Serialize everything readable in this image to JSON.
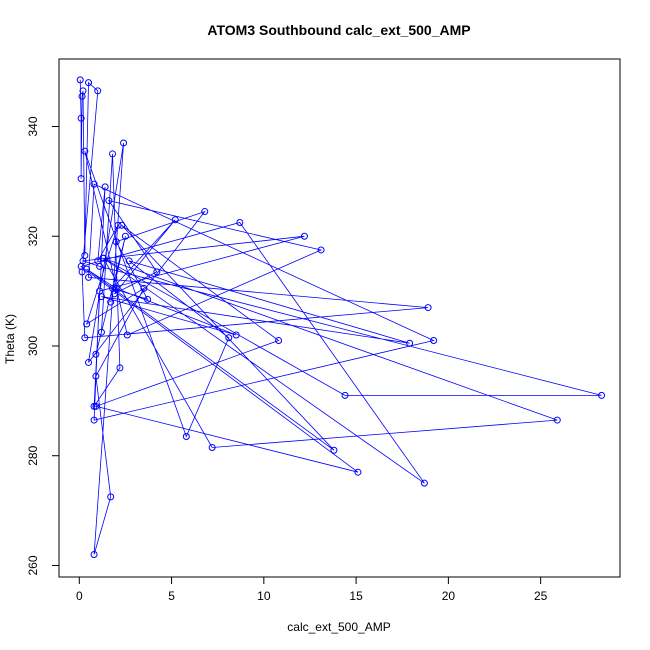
{
  "chart_data": {
    "type": "line",
    "title": "ATOM3 Southbound calc_ext_500_AMP",
    "xlabel": "calc_ext_500_AMP",
    "ylabel": "Theta (K)",
    "xlim": [
      -1.1,
      29.3
    ],
    "ylim": [
      257.9,
      352.3
    ],
    "x_ticks": [
      0,
      5,
      10,
      15,
      20,
      25
    ],
    "y_ticks": [
      260,
      280,
      300,
      320,
      340
    ],
    "x_tick_labels": [
      "0",
      "5",
      "10",
      "15",
      "20",
      "25"
    ],
    "y_tick_labels": [
      "260",
      "280",
      "300",
      "320",
      "340"
    ],
    "grid": false,
    "legend": "none",
    "marker": "open-circle",
    "line_color": "#0000ff",
    "series": [
      {
        "x": [
          0.05,
          0.1,
          0.1,
          0.15,
          0.2,
          0.3,
          0.5,
          1.0,
          0.15,
          0.3,
          18.9,
          0.5,
          0.8,
          19.2,
          0.8,
          1.1,
          12.2,
          0.2,
          1.1,
          28.3,
          14.4,
          1.3,
          25.9,
          7.2,
          1.3,
          18.7,
          8.7,
          0.1,
          15.1,
          0.9,
          10.8,
          2.3,
          13.8,
          0.4,
          2.0,
          8.5,
          1.2,
          17.9,
          2.7,
          8.1,
          5.8,
          0.3,
          2.6,
          13.1,
          1.6,
          4.2,
          1.9,
          5.2,
          1.8,
          3.7,
          2.0,
          6.8,
          0.5,
          2.4,
          0.8,
          1.7,
          0.9,
          3.5,
          0.4,
          2.1,
          1.0,
          1.4,
          0.8,
          2.2,
          1.8,
          1.2,
          0.9,
          2.5,
          1.7
        ],
        "y": [
          348.5,
          341.5,
          330.5,
          345.5,
          346.5,
          316.5,
          348.0,
          346.5,
          313.5,
          301.5,
          307.0,
          312.5,
          329.5,
          301.0,
          286.5,
          310.0,
          320.0,
          315.5,
          314.5,
          291.0,
          291.0,
          316.0,
          286.5,
          281.5,
          316.0,
          275.0,
          322.5,
          314.5,
          277.0,
          289.0,
          301.0,
          322.0,
          281.0,
          314.0,
          310.5,
          302.0,
          309.0,
          300.5,
          315.5,
          301.5,
          283.5,
          335.5,
          302.0,
          317.5,
          326.5,
          313.5,
          309.5,
          323.0,
          310.5,
          308.5,
          319.0,
          324.5,
          297.0,
          337.0,
          262.0,
          272.5,
          294.5,
          310.5,
          304.0,
          322.0,
          315.5,
          329.0,
          289.0,
          296.0,
          335.0,
          302.5,
          298.5,
          320.0,
          308.0
        ]
      }
    ]
  }
}
